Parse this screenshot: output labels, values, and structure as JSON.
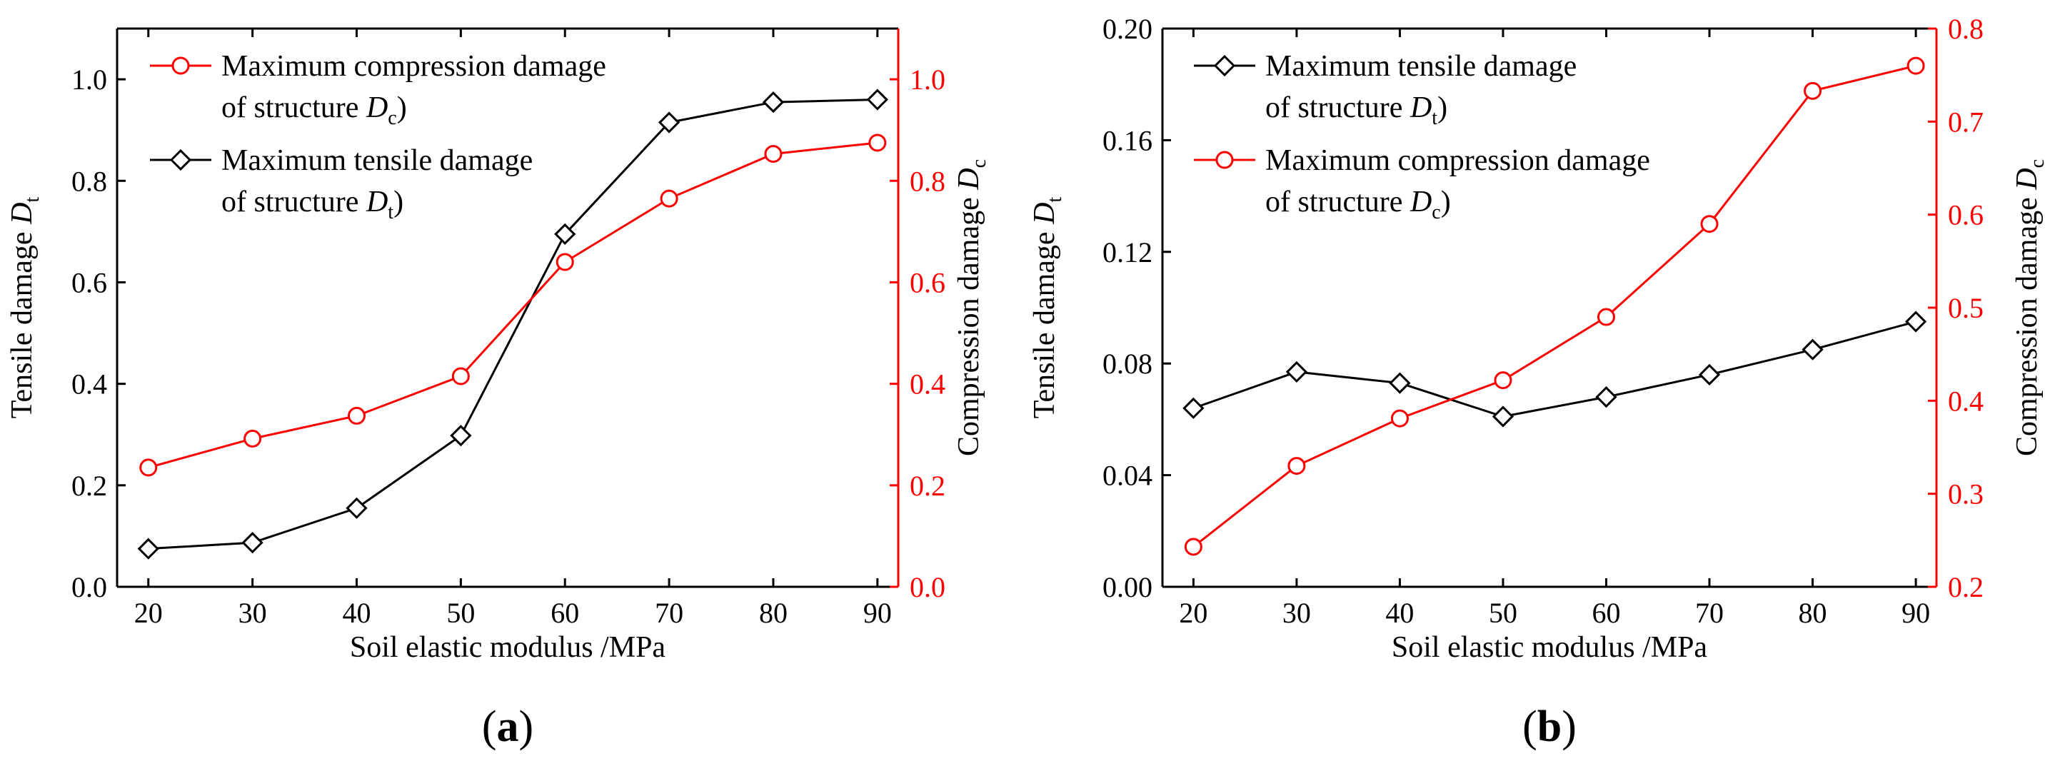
{
  "colors": {
    "tensile": "#000000",
    "compression": "#ff0000"
  },
  "chart_data": [
    {
      "panel": "a",
      "type": "line",
      "panel_label_paren_open": "(",
      "panel_label": "a",
      "panel_label_paren_close": ")",
      "xlabel": "Soil elastic modulus /MPa",
      "ylabel_main": "Tensile damage ",
      "ylabel_sym": "D",
      "ylabel_sub": "t",
      "y2label_main": "Compression damage ",
      "y2label_sym": "D",
      "y2label_sub": "c",
      "x": [
        20,
        30,
        40,
        50,
        60,
        70,
        80,
        90
      ],
      "xlim": [
        17,
        92
      ],
      "xticks": [
        "20",
        "30",
        "40",
        "50",
        "60",
        "70",
        "80",
        "90"
      ],
      "ylim": [
        0,
        1.1
      ],
      "yticks": [
        "0.0",
        "0.2",
        "0.4",
        "0.6",
        "0.8",
        "1.0"
      ],
      "y2lim": [
        0,
        1.1
      ],
      "y2ticks": [
        "0.0",
        "0.2",
        "0.4",
        "0.6",
        "0.8",
        "1.0"
      ],
      "series": [
        {
          "name": "Maximum tensile damage of structure Dt)",
          "axis": "left",
          "marker": "diamond",
          "color": "#000000",
          "values": [
            0.075,
            0.087,
            0.155,
            0.298,
            0.695,
            0.915,
            0.955,
            0.96
          ],
          "legend_line1": "Maximum tensile damage",
          "legend_line2_pre": "of structure ",
          "legend_sym": "D",
          "legend_sub": "t",
          "legend_post": ")"
        },
        {
          "name": "Maximum compression damage of structure Dc)",
          "axis": "right",
          "marker": "circle",
          "color": "#ff0000",
          "values": [
            0.235,
            0.292,
            0.337,
            0.415,
            0.64,
            0.765,
            0.853,
            0.875
          ],
          "legend_line1": "Maximum compression damage",
          "legend_line2_pre": "of structure ",
          "legend_sym": "D",
          "legend_sub": "c",
          "legend_post": ")"
        }
      ],
      "legend_order": [
        1,
        0
      ]
    },
    {
      "panel": "b",
      "type": "line",
      "panel_label_paren_open": "(",
      "panel_label": "b",
      "panel_label_paren_close": ")",
      "xlabel": "Soil elastic modulus /MPa",
      "ylabel_main": "Tensile damage ",
      "ylabel_sym": "D",
      "ylabel_sub": "t",
      "y2label_main": "Compression damage ",
      "y2label_sym": "D",
      "y2label_sub": "c",
      "x": [
        20,
        30,
        40,
        50,
        60,
        70,
        80,
        90
      ],
      "xlim": [
        17,
        92
      ],
      "xticks": [
        "20",
        "30",
        "40",
        "50",
        "60",
        "70",
        "80",
        "90"
      ],
      "ylim": [
        0,
        0.2
      ],
      "yticks": [
        "0.00",
        "0.04",
        "0.08",
        "0.12",
        "0.16",
        "0.20"
      ],
      "y2lim": [
        0.2,
        0.8
      ],
      "y2ticks": [
        "0.2",
        "0.3",
        "0.4",
        "0.5",
        "0.6",
        "0.7",
        "0.8"
      ],
      "series": [
        {
          "name": "Maximum tensile damage of structure Dt)",
          "axis": "left",
          "marker": "diamond",
          "color": "#000000",
          "values": [
            0.064,
            0.077,
            0.073,
            0.061,
            0.068,
            0.076,
            0.085,
            0.095
          ],
          "legend_line1": "Maximum tensile damage",
          "legend_line2_pre": "of structure ",
          "legend_sym": "D",
          "legend_sub": "t",
          "legend_post": ")"
        },
        {
          "name": "Maximum compression damage of structure Dc)",
          "axis": "right",
          "marker": "circle",
          "color": "#ff0000",
          "values": [
            0.243,
            0.33,
            0.381,
            0.422,
            0.49,
            0.59,
            0.733,
            0.76
          ],
          "legend_line1": "Maximum compression damage",
          "legend_line2_pre": "of structure ",
          "legend_sym": "D",
          "legend_sub": "c",
          "legend_post": ")"
        }
      ],
      "legend_order": [
        0,
        1
      ]
    }
  ]
}
